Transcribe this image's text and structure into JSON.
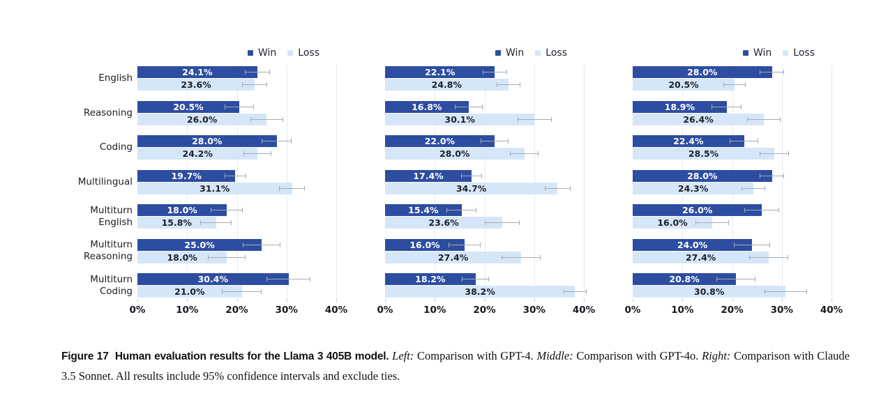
{
  "colors": {
    "win": "#2d4da1",
    "loss": "#d6e6f9",
    "win_label_text": "#ffffff",
    "loss_label_text": "#1d2127",
    "error_bar": "#a4abb5",
    "gridline": "#e8eaee"
  },
  "legend": {
    "items": [
      {
        "name": "Win",
        "color_key": "win"
      },
      {
        "name": "Loss",
        "color_key": "loss"
      }
    ]
  },
  "category_lines": [
    [
      "English"
    ],
    [
      "Reasoning"
    ],
    [
      "Coding"
    ],
    [
      "Multilingual"
    ],
    [
      "Multiturn",
      "English"
    ],
    [
      "Multiturn",
      "Reasoning"
    ],
    [
      "Multiturn",
      "Coding"
    ]
  ],
  "x_axis": {
    "ticks": [
      "0%",
      "10%",
      "20%",
      "30%",
      "40%"
    ],
    "min": 0,
    "max": 40
  },
  "chart_data": [
    {
      "type": "bar",
      "orientation": "horizontal",
      "position": "left",
      "comparison": "GPT-4",
      "categories": [
        "English",
        "Reasoning",
        "Coding",
        "Multilingual",
        "Multiturn English",
        "Multiturn Reasoning",
        "Multiturn Coding"
      ],
      "series": [
        {
          "name": "Win",
          "values": [
            24.1,
            20.5,
            28.0,
            19.7,
            18.0,
            25.0,
            30.4
          ],
          "ci_est": [
            2.5,
            3.0,
            3.0,
            2.2,
            3.2,
            3.8,
            4.4
          ]
        },
        {
          "name": "Loss",
          "values": [
            23.6,
            26.0,
            24.2,
            31.1,
            15.8,
            18.0,
            21.0
          ],
          "ci_est": [
            2.5,
            3.3,
            2.8,
            2.6,
            3.2,
            3.8,
            4.0
          ]
        }
      ],
      "xlim": [
        0,
        40
      ],
      "x_tick_labels": [
        "0%",
        "10%",
        "20%",
        "30%",
        "40%"
      ],
      "legend_position": "top-right",
      "grid": "vertical"
    },
    {
      "type": "bar",
      "orientation": "horizontal",
      "position": "middle",
      "comparison": "GPT-4o",
      "categories": [
        "English",
        "Reasoning",
        "Coding",
        "Multilingual",
        "Multiturn English",
        "Multiturn Reasoning",
        "Multiturn Coding"
      ],
      "series": [
        {
          "name": "Win",
          "values": [
            22.1,
            16.8,
            22.0,
            17.4,
            15.4,
            16.0,
            18.2
          ],
          "ci_est": [
            2.4,
            2.8,
            2.8,
            2.1,
            3.0,
            3.2,
            2.7
          ]
        },
        {
          "name": "Loss",
          "values": [
            24.8,
            30.1,
            28.0,
            34.7,
            23.6,
            27.4,
            38.2
          ],
          "ci_est": [
            2.4,
            3.4,
            2.9,
            2.6,
            3.5,
            3.9,
            2.3
          ]
        }
      ],
      "xlim": [
        0,
        40
      ],
      "x_tick_labels": [
        "0%",
        "10%",
        "20%",
        "30%",
        "40%"
      ],
      "legend_position": "top-right",
      "grid": "vertical"
    },
    {
      "type": "bar",
      "orientation": "horizontal",
      "position": "right",
      "comparison": "Claude 3.5 Sonnet",
      "categories": [
        "English",
        "Reasoning",
        "Coding",
        "Multilingual",
        "Multiturn English",
        "Multiturn Reasoning",
        "Multiturn Coding"
      ],
      "series": [
        {
          "name": "Win",
          "values": [
            28.0,
            18.9,
            22.4,
            28.0,
            26.0,
            24.0,
            20.8
          ],
          "ci_est": [
            2.5,
            3.0,
            2.9,
            2.5,
            3.5,
            3.6,
            3.9
          ]
        },
        {
          "name": "Loss",
          "values": [
            20.5,
            26.4,
            28.5,
            24.3,
            16.0,
            27.4,
            30.8
          ],
          "ci_est": [
            2.3,
            3.4,
            3.0,
            2.4,
            3.4,
            3.9,
            4.3
          ]
        }
      ],
      "xlim": [
        0,
        40
      ],
      "x_tick_labels": [
        "0%",
        "10%",
        "20%",
        "30%",
        "40%"
      ],
      "legend_position": "top-right",
      "grid": "vertical"
    }
  ],
  "caption": {
    "label": "Figure 17",
    "bold_text": "Human evaluation results for the Llama 3 405B model.",
    "segments": [
      {
        "italic": true,
        "text": "Left:"
      },
      {
        "italic": false,
        "text": " Comparison with GPT-4. "
      },
      {
        "italic": true,
        "text": "Middle:"
      },
      {
        "italic": false,
        "text": " Comparison with GPT-4o. "
      },
      {
        "italic": true,
        "text": "Right:"
      },
      {
        "italic": false,
        "text": " Comparison with Claude 3.5 Sonnet. All results include 95% confidence intervals and exclude ties."
      }
    ]
  }
}
